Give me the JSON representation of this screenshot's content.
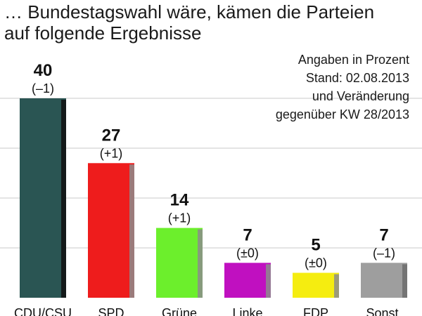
{
  "header": {
    "title_line1": "… Bundestagswahl wäre, kämen die Parteien",
    "title_line2": "auf folgende Ergebnisse"
  },
  "note": {
    "line1": "Angaben in Prozent",
    "line2": "Stand: 02.08.2013",
    "line3": "und Veränderung",
    "line4": "gegenüber KW 28/2013"
  },
  "chart_data": {
    "type": "bar",
    "categories": [
      "CDU/CSU",
      "SPD",
      "Grüne",
      "Linke",
      "FDP",
      "Sonst."
    ],
    "values": [
      40,
      27,
      14,
      7,
      5,
      7
    ],
    "changes": [
      "(–1)",
      "(+1)",
      "(+1)",
      "(±0)",
      "(±0)",
      "(–1)"
    ],
    "colors": [
      "#2a5553",
      "#ee1c1c",
      "#6cef2c",
      "#c010c0",
      "#f5ed10",
      "#9e9e9e"
    ],
    "shade_colors": [
      "#111111",
      "#8c8c8c",
      "#8c8c8c",
      "#8c8c8c",
      "#8c8c8c",
      "#6c6c6c"
    ],
    "ylim": [
      0,
      45
    ],
    "grid": true,
    "title": "… Bundestagswahl wäre, kämen die Parteien auf folgende Ergebnisse",
    "xlabel": "",
    "ylabel": ""
  }
}
